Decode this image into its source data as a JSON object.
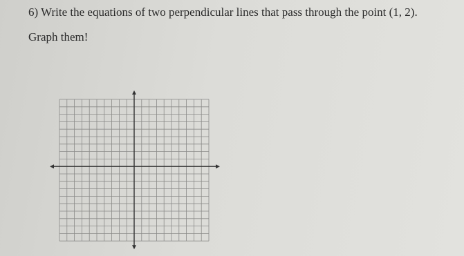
{
  "problem": {
    "number": "6)",
    "text": "Write the equations of two perpendicular lines that pass through the point (1, 2).",
    "instruction": "Graph them!"
  }
}
